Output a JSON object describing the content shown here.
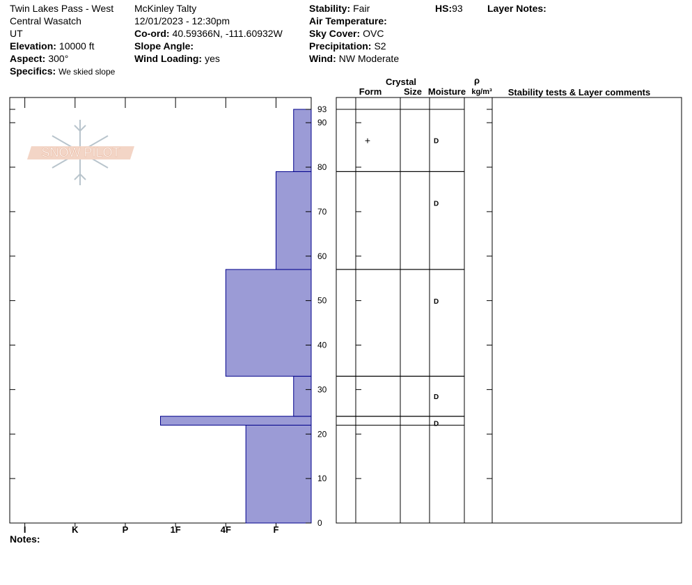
{
  "header": {
    "col1": [
      {
        "value": "Twin Lakes Pass - West"
      },
      {
        "value": "Central Wasatch"
      },
      {
        "value": "UT"
      },
      {
        "label": "Elevation:",
        "value": "10000 ft"
      },
      {
        "label": "Aspect:",
        "value": "300°"
      },
      {
        "label": "Specifics:",
        "value": "We skied slope"
      }
    ],
    "col2": [
      {
        "value": "McKinley Talty"
      },
      {
        "value": "12/01/2023 - 12:30pm"
      },
      {
        "label": "Co-ord:",
        "value": "40.59366N, -111.60932W"
      },
      {
        "label": "Slope Angle:"
      },
      {
        "label": "Wind Loading:",
        "value": "yes"
      }
    ],
    "col3": [
      {
        "label": "Stability:",
        "value": "Fair"
      },
      {
        "label": "Air Temperature:"
      },
      {
        "label": "Sky Cover:",
        "value": "OVC"
      },
      {
        "label": "Precipitation:",
        "value": "S2"
      },
      {
        "label": "Wind:",
        "value": "NW Moderate"
      }
    ],
    "hs": {
      "label": "HS:",
      "value": 93
    },
    "layer_notes": "Layer Notes:"
  },
  "notes": "Notes:",
  "chart_data": {
    "type": "snow-profile",
    "logo": "SNOW PILOT",
    "ylim": [
      0,
      93
    ],
    "yticks": [
      0,
      10,
      20,
      30,
      40,
      50,
      60,
      70,
      80,
      90,
      93
    ],
    "xlim": [
      6.3,
      0.3
    ],
    "xticks": [
      {
        "value": 6,
        "label": "I"
      },
      {
        "value": 5,
        "label": "K"
      },
      {
        "value": 4,
        "label": "P"
      },
      {
        "value": 3,
        "label": "1F"
      },
      {
        "value": 2,
        "label": "4F"
      },
      {
        "value": 1,
        "label": "F"
      }
    ],
    "color": "#9b9bd6",
    "edge_color": "#00008b",
    "layers": [
      {
        "bottom": 0,
        "top": 22,
        "hardness": 1.6
      },
      {
        "bottom": 22,
        "top": 24,
        "hardness": 3.3,
        "moisture": "D"
      },
      {
        "bottom": 24,
        "top": 33,
        "hardness": 0.65,
        "moisture": "D"
      },
      {
        "bottom": 33,
        "top": 57,
        "hardness": 2,
        "moisture": "D"
      },
      {
        "bottom": 57,
        "top": 79,
        "hardness": 1,
        "moisture": "D"
      },
      {
        "bottom": 79,
        "top": 93,
        "hardness": 0.65,
        "form": "+",
        "moisture": "D"
      }
    ],
    "table_headers": {
      "crystal": "Crystal",
      "form": "Form",
      "size": "Size",
      "moisture": "Moisture",
      "density_symbol": "ρ",
      "density_unit": "kg/m³",
      "comments": "Stability tests & Layer comments"
    }
  }
}
